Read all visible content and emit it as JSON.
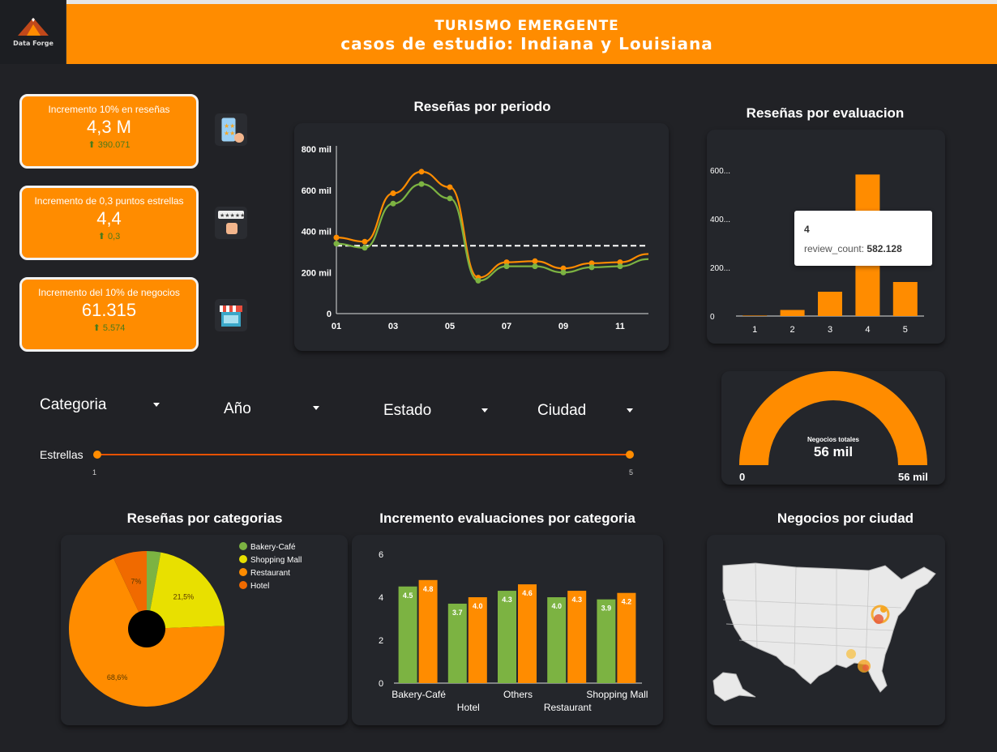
{
  "header": {
    "logo_text": "Data Forge",
    "title_line1": "TURISMO EMERGENTE",
    "title_line2": "casos de estudio: Indiana y Louisiana"
  },
  "kpis": [
    {
      "label": "Incremento 10% en reseñas",
      "value": "4,3 M",
      "delta": "⬆ 390.071",
      "icon": "rating-phone-icon"
    },
    {
      "label": "Incremento de 0,3 puntos estrellas",
      "value": "4,4",
      "delta": "⬆ 0,3",
      "icon": "thumbs-up-rating-icon"
    },
    {
      "label": "Incremento del 10% de negocios",
      "value": "61.315",
      "delta": "⬆ 5.574",
      "icon": "storefront-icon"
    }
  ],
  "filters": {
    "categoria": "Categoria",
    "anio": "Año",
    "estado": "Estado",
    "ciudad": "Ciudad",
    "estrellas_label": "Estrellas",
    "estrellas_min": "1",
    "estrellas_max": "5"
  },
  "colors": {
    "orange": "#ff8c00",
    "green": "#7cb342",
    "yellow": "#e8e000",
    "dark_orange": "#f06a00"
  },
  "period_chart": {
    "title": "Reseñas por periodo",
    "y_ticks": [
      "0",
      "200 mil",
      "400 mil",
      "600 mil",
      "800 mil"
    ],
    "x_ticks": [
      "01",
      "03",
      "05",
      "07",
      "09",
      "11"
    ],
    "chart_data": {
      "type": "line",
      "x": [
        1,
        2,
        3,
        4,
        5,
        6,
        7,
        8,
        9,
        10,
        11,
        12
      ],
      "ylim": [
        0,
        800000
      ],
      "reference_line": 330000,
      "series": [
        {
          "values": [
            370000,
            350000,
            585000,
            690000,
            615000,
            175000,
            250000,
            255000,
            220000,
            245000,
            250000,
            290000
          ]
        },
        {
          "values": [
            340000,
            320000,
            535000,
            630000,
            560000,
            160000,
            230000,
            230000,
            200000,
            225000,
            230000,
            265000
          ]
        }
      ]
    }
  },
  "rating_chart": {
    "title": "Reseñas por evaluacion",
    "y_ticks": [
      "0",
      "200...",
      "400...",
      "600..."
    ],
    "tooltip_title": "4",
    "tooltip_key": "review_count:",
    "tooltip_value": "582.128",
    "chart_data": {
      "type": "bar",
      "categories": [
        "1",
        "2",
        "3",
        "4",
        "5"
      ],
      "values": [
        2000,
        25000,
        100000,
        582128,
        140000
      ],
      "ylim": [
        0,
        700000
      ]
    }
  },
  "gauge": {
    "label": "Negocios totales",
    "value": "56 mil",
    "min": "0",
    "max": "56 mil",
    "fraction": 1.0
  },
  "pie_chart": {
    "title": "Reseñas por categorias",
    "chart_data": {
      "type": "pie",
      "labels": [
        "Bakery-Café",
        "Shopping Mall",
        "Restaurant",
        "Hotel"
      ],
      "values": [
        2.9,
        21.5,
        68.6,
        7
      ],
      "value_labels": [
        "",
        "21,5%",
        "68,6%",
        "7%"
      ],
      "colors": [
        "#7cb342",
        "#e8e000",
        "#ff8c00",
        "#f06a00"
      ]
    }
  },
  "increment_chart": {
    "title": "Incremento evaluaciones por categoria",
    "y_ticks": [
      "0",
      "2",
      "4",
      "6"
    ],
    "chart_data": {
      "type": "bar",
      "categories": [
        "Bakery-Café",
        "Hotel",
        "Others",
        "Restaurant",
        "Shopping Mall"
      ],
      "ylim": [
        0,
        6
      ],
      "series": [
        {
          "values": [
            4.5,
            3.7,
            4.3,
            4.0,
            3.9
          ],
          "labels": [
            "4.5",
            "3.7",
            "4.3",
            "4.0",
            "3.9"
          ]
        },
        {
          "values": [
            4.8,
            4.0,
            4.6,
            4.3,
            4.2
          ],
          "labels": [
            "4.8",
            "4.0",
            "4.6",
            "4.3",
            "4.2"
          ]
        }
      ]
    }
  },
  "map": {
    "title": "Negocios por ciudad"
  }
}
